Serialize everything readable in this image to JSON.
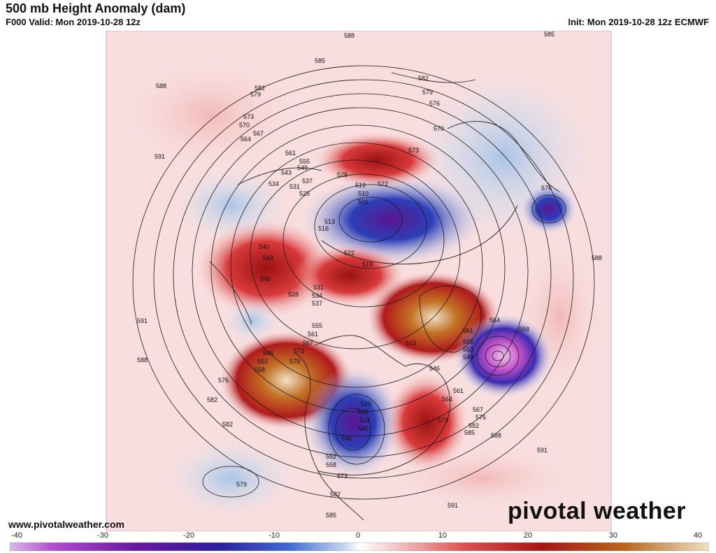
{
  "header": {
    "title": "500 mb Height Anomaly (dam)",
    "valid": "F000 Valid: Mon 2019-10-28 12z",
    "init": "Init: Mon 2019-10-28 12z ECMWF"
  },
  "footer": {
    "url": "www.pivotalweather.com",
    "logo": "pivotal weather"
  },
  "colorbar": {
    "labels": [
      "-40",
      "-30",
      "-20",
      "-10",
      "0",
      "10",
      "20",
      "30",
      "40"
    ],
    "colors": [
      "#d9b8e8",
      "#b34fd0",
      "#6a16a0",
      "#2c1f9e",
      "#3f6bd6",
      "#c9d9ef",
      "#ffffff",
      "#f4c8c8",
      "#e05050",
      "#a81414",
      "#b8681a",
      "#efe0c8"
    ]
  },
  "contour_labels": [
    "588",
    "585",
    "582",
    "579",
    "576",
    "573",
    "570",
    "567",
    "564",
    "561",
    "558",
    "555",
    "552",
    "549",
    "546",
    "543",
    "540",
    "537",
    "534",
    "531",
    "528",
    "525",
    "522",
    "519",
    "516",
    "513",
    "510",
    "501",
    "591"
  ]
}
